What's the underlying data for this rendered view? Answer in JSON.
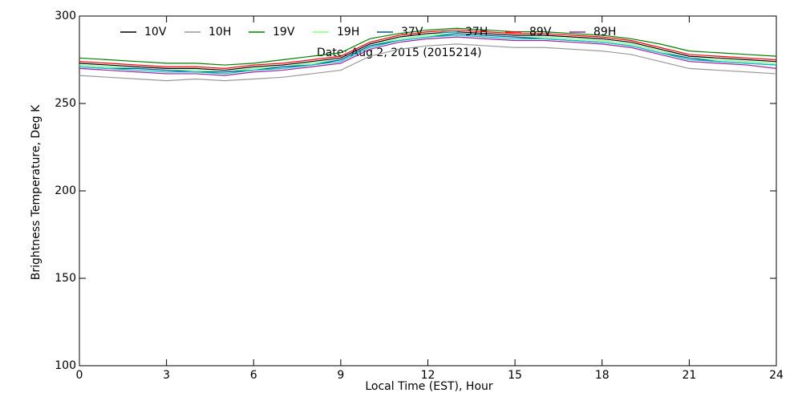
{
  "chart_data": {
    "type": "line",
    "date_note": "Date: Aug  2, 2015 (2015214)",
    "x_label": "Local Time (EST), Hour",
    "y_label": "Brightness Temperature, Deg K",
    "x": [
      0,
      1,
      2,
      3,
      4,
      5,
      6,
      7,
      8,
      9,
      10,
      11,
      12,
      13,
      14,
      15,
      16,
      17,
      18,
      19,
      20,
      21,
      22,
      23,
      24
    ],
    "series": [
      {
        "name": "10V",
        "color": "#000000",
        "values": [
          273,
          272,
          271,
          270,
          270,
          269,
          271,
          272,
          274,
          276,
          284,
          288,
          290,
          291,
          290,
          289,
          289,
          288,
          287,
          285,
          281,
          277,
          276,
          275,
          274
        ]
      },
      {
        "name": "10H",
        "color": "#999999",
        "values": [
          266,
          265,
          264,
          263,
          264,
          263,
          264,
          265,
          267,
          269,
          277,
          281,
          283,
          284,
          283,
          282,
          282,
          281,
          280,
          278,
          274,
          270,
          269,
          268,
          267
        ]
      },
      {
        "name": "19V",
        "color": "#008000",
        "values": [
          276,
          275,
          274,
          273,
          273,
          272,
          273,
          275,
          277,
          279,
          287,
          290,
          292,
          293,
          292,
          291,
          291,
          290,
          289,
          287,
          284,
          280,
          279,
          278,
          277
        ]
      },
      {
        "name": "19H",
        "color": "#80ff80",
        "values": [
          272,
          271,
          270,
          269,
          269,
          268,
          270,
          271,
          273,
          275,
          283,
          287,
          289,
          290,
          289,
          288,
          288,
          287,
          286,
          284,
          280,
          276,
          275,
          274,
          273
        ]
      },
      {
        "name": "37V",
        "color": "#0050a0",
        "values": [
          271,
          270,
          270,
          269,
          268,
          268,
          269,
          271,
          272,
          275,
          283,
          286,
          288,
          290,
          289,
          288,
          287,
          286,
          285,
          283,
          279,
          276,
          274,
          273,
          272
        ]
      },
      {
        "name": "37H",
        "color": "#00c0c0",
        "values": [
          271,
          270,
          269,
          268,
          268,
          267,
          269,
          270,
          272,
          274,
          282,
          286,
          288,
          289,
          288,
          287,
          287,
          286,
          285,
          283,
          279,
          275,
          274,
          273,
          272
        ]
      },
      {
        "name": "89V",
        "color": "#ff0000",
        "values": [
          274,
          273,
          272,
          271,
          271,
          270,
          272,
          273,
          275,
          277,
          285,
          289,
          291,
          292,
          291,
          290,
          290,
          289,
          288,
          286,
          282,
          278,
          277,
          276,
          275
        ]
      },
      {
        "name": "89H",
        "color": "#a020a0",
        "values": [
          270,
          269,
          268,
          267,
          267,
          266,
          268,
          269,
          271,
          273,
          281,
          285,
          287,
          288,
          287,
          286,
          286,
          285,
          284,
          282,
          278,
          274,
          273,
          272,
          270
        ]
      }
    ],
    "xlim": [
      0,
      24
    ],
    "xticks": [
      0,
      3,
      6,
      9,
      12,
      15,
      18,
      21,
      24
    ],
    "ylim": [
      100,
      300
    ],
    "yticks": [
      100,
      150,
      200,
      250,
      300
    ]
  }
}
